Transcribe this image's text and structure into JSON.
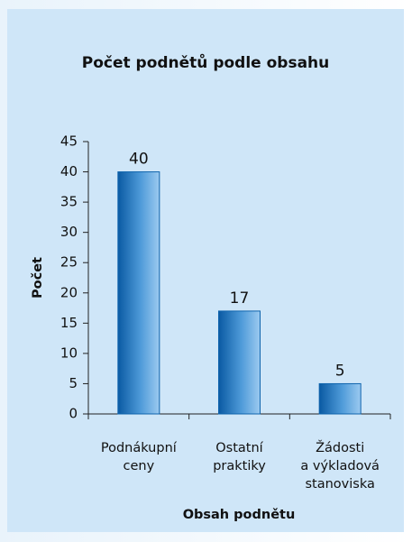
{
  "chart_data": {
    "type": "bar",
    "title": "Počet podnětů podle obsahu",
    "x_label": "Obsah podnětu",
    "y_label": "Počet",
    "categories": [
      [
        "Podnákupní",
        "ceny"
      ],
      [
        "Ostatní",
        "praktiky"
      ],
      [
        "Žádosti",
        "a výkladová",
        "stanoviska"
      ]
    ],
    "values": [
      40,
      17,
      5
    ],
    "color": "#0f64ad",
    "ylim": [
      0,
      45
    ],
    "yticks": [
      0,
      5,
      10,
      15,
      20,
      25,
      30,
      35,
      40,
      45
    ],
    "grid": false
  }
}
